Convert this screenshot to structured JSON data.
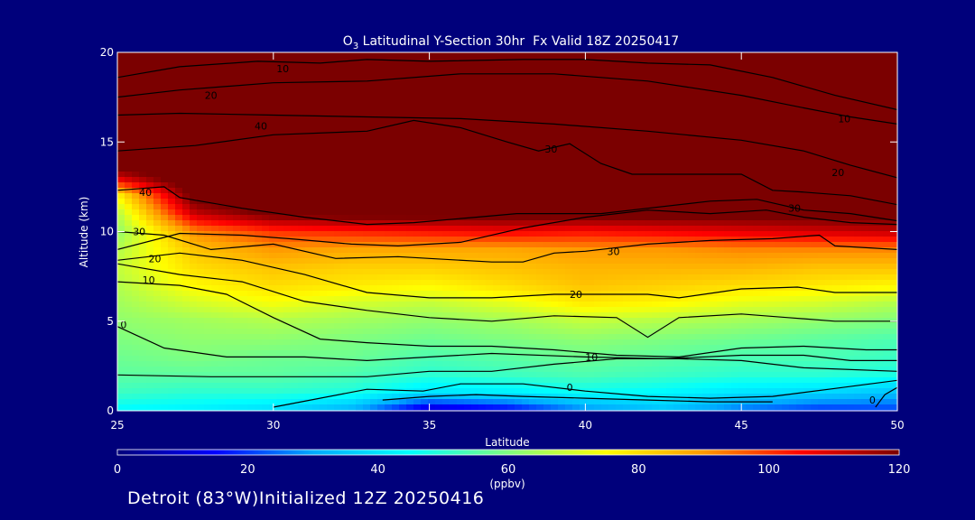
{
  "chart_data": {
    "type": "heatmap",
    "title": "O3 Latitudinal Y-Section 30hr  Fx Valid 18Z 20250417",
    "title_parts": {
      "species_base": "O",
      "species_sub": "3",
      "rest": " Latitudinal Y-Section 30hr  Fx Valid 18Z 20250417"
    },
    "xlabel": "Latitude",
    "ylabel": "Altitude (km)",
    "xlim": [
      25,
      50
    ],
    "ylim": [
      0,
      20
    ],
    "xticks": [
      25,
      30,
      35,
      40,
      45,
      50
    ],
    "yticks": [
      0,
      5,
      10,
      15,
      20
    ],
    "grid": false,
    "colorbar": {
      "label": "(ppbv)",
      "range": [
        0,
        120
      ],
      "ticks": [
        0,
        20,
        40,
        60,
        80,
        100,
        120
      ],
      "colors": [
        "#00007b",
        "#0000ff",
        "#00aaff",
        "#00ffff",
        "#7fff7f",
        "#ffff00",
        "#ff9900",
        "#ff0000",
        "#7b0000"
      ]
    },
    "field": {
      "description_units": "ppbv",
      "x": [
        25,
        27.5,
        30,
        32.5,
        35,
        37.5,
        40,
        42.5,
        45,
        47.5,
        50
      ],
      "y": [
        0,
        1,
        2,
        3,
        4,
        5,
        6,
        7,
        8,
        9,
        10,
        11,
        12,
        13,
        14,
        20
      ],
      "values": [
        [
          44,
          42,
          38,
          30,
          6,
          12,
          26,
          34,
          24,
          18,
          20
        ],
        [
          52,
          50,
          50,
          48,
          40,
          42,
          46,
          44,
          40,
          38,
          34
        ],
        [
          56,
          56,
          56,
          54,
          50,
          52,
          54,
          52,
          50,
          50,
          48
        ],
        [
          58,
          60,
          58,
          58,
          54,
          56,
          58,
          56,
          54,
          54,
          52
        ],
        [
          60,
          62,
          62,
          60,
          58,
          60,
          62,
          60,
          58,
          56,
          54
        ],
        [
          62,
          64,
          66,
          64,
          62,
          64,
          68,
          66,
          64,
          62,
          60
        ],
        [
          64,
          70,
          74,
          70,
          68,
          72,
          78,
          76,
          72,
          70,
          66
        ],
        [
          66,
          76,
          80,
          78,
          76,
          80,
          84,
          82,
          80,
          78,
          76
        ],
        [
          68,
          80,
          84,
          82,
          82,
          84,
          86,
          86,
          86,
          84,
          84
        ],
        [
          66,
          84,
          90,
          88,
          88,
          88,
          90,
          90,
          92,
          92,
          92
        ],
        [
          62,
          92,
          100,
          102,
          104,
          106,
          104,
          106,
          108,
          110,
          112
        ],
        [
          66,
          112,
          122,
          124,
          124,
          124,
          124,
          124,
          124,
          124,
          124
        ],
        [
          76,
          124,
          130,
          130,
          130,
          130,
          130,
          130,
          130,
          130,
          130
        ],
        [
          110,
          130,
          130,
          130,
          130,
          130,
          130,
          130,
          130,
          130,
          130
        ],
        [
          130,
          130,
          130,
          130,
          130,
          130,
          130,
          130,
          130,
          130,
          130
        ],
        [
          130,
          130,
          130,
          130,
          130,
          130,
          130,
          130,
          130,
          130,
          130
        ]
      ]
    },
    "contours": [
      {
        "label": "0",
        "points": [
          [
            33.5,
            0.6
          ],
          [
            35,
            0.8
          ],
          [
            36.5,
            0.9
          ],
          [
            38,
            0.8
          ],
          [
            40,
            0.7
          ],
          [
            42,
            0.6
          ],
          [
            44,
            0.5
          ],
          [
            46,
            0.5
          ]
        ]
      },
      {
        "label": "0",
        "points": [
          [
            49.3,
            0.2
          ],
          [
            49.6,
            0.9
          ],
          [
            50,
            1.3
          ]
        ]
      },
      {
        "label": "10",
        "points": [
          [
            25,
            2.0
          ],
          [
            28,
            1.9
          ],
          [
            30,
            1.9
          ],
          [
            33,
            1.9
          ],
          [
            35,
            2.2
          ],
          [
            37,
            2.2
          ],
          [
            39,
            2.6
          ],
          [
            41,
            2.9
          ],
          [
            43,
            2.9
          ],
          [
            45,
            2.8
          ],
          [
            47,
            2.4
          ],
          [
            50,
            2.2
          ]
        ]
      },
      {
        "label": "0",
        "points": [
          [
            30,
            0.2
          ],
          [
            33,
            1.2
          ],
          [
            34.8,
            1.1
          ],
          [
            36,
            1.5
          ],
          [
            38,
            1.5
          ],
          [
            40,
            1.1
          ],
          [
            42,
            0.8
          ],
          [
            44,
            0.7
          ],
          [
            46,
            0.8
          ],
          [
            47.8,
            1.2
          ],
          [
            50,
            1.7
          ]
        ]
      },
      {
        "label": "10",
        "points": [
          [
            25,
            4.7
          ],
          [
            26.5,
            3.5
          ],
          [
            28.5,
            3.0
          ],
          [
            31,
            3.0
          ],
          [
            33,
            2.8
          ],
          [
            35,
            3.0
          ],
          [
            37,
            3.2
          ],
          [
            40,
            3.0
          ],
          [
            42.5,
            2.9
          ],
          [
            45,
            3.1
          ],
          [
            47,
            3.1
          ],
          [
            48.5,
            2.8
          ],
          [
            50,
            2.8
          ]
        ]
      },
      {
        "label": "10",
        "points": [
          [
            25,
            7.2
          ],
          [
            27,
            7.0
          ],
          [
            28.5,
            6.5
          ],
          [
            30,
            5.2
          ],
          [
            31.5,
            4.0
          ],
          [
            33,
            3.8
          ],
          [
            35,
            3.6
          ],
          [
            37,
            3.6
          ],
          [
            39,
            3.4
          ],
          [
            41,
            3.1
          ],
          [
            43,
            3.0
          ],
          [
            45,
            3.5
          ],
          [
            47,
            3.6
          ],
          [
            49,
            3.4
          ],
          [
            50,
            3.4
          ]
        ]
      },
      {
        "label": "",
        "points": [
          [
            25,
            8.2
          ],
          [
            27,
            7.6
          ],
          [
            29,
            7.2
          ],
          [
            31,
            6.1
          ],
          [
            33,
            5.6
          ],
          [
            35,
            5.2
          ],
          [
            37,
            5.0
          ],
          [
            39,
            5.3
          ],
          [
            41,
            5.2
          ],
          [
            42,
            4.1
          ],
          [
            43,
            5.2
          ],
          [
            45,
            5.4
          ],
          [
            46.5,
            5.2
          ],
          [
            48,
            5.0
          ],
          [
            50,
            5.0
          ]
        ]
      },
      {
        "label": "20",
        "points": [
          [
            25,
            8.4
          ],
          [
            27,
            8.8
          ],
          [
            29,
            8.4
          ],
          [
            31,
            7.6
          ],
          [
            33,
            6.6
          ],
          [
            35,
            6.3
          ],
          [
            37,
            6.3
          ],
          [
            39,
            6.5
          ],
          [
            40,
            6.5
          ],
          [
            42,
            6.5
          ],
          [
            43,
            6.3
          ],
          [
            45,
            6.8
          ],
          [
            46.8,
            6.9
          ],
          [
            48,
            6.6
          ],
          [
            50,
            6.6
          ]
        ]
      },
      {
        "label": "30",
        "points": [
          [
            25,
            10.0
          ],
          [
            26.5,
            9.8
          ],
          [
            28,
            9.0
          ],
          [
            30,
            9.3
          ],
          [
            32,
            8.5
          ],
          [
            34,
            8.6
          ],
          [
            35,
            8.5
          ],
          [
            37,
            8.3
          ],
          [
            38,
            8.3
          ],
          [
            39,
            8.8
          ],
          [
            40,
            8.9
          ],
          [
            42,
            9.3
          ],
          [
            44,
            9.5
          ],
          [
            46,
            9.6
          ],
          [
            47.5,
            9.8
          ],
          [
            48,
            9.2
          ],
          [
            50,
            9.0
          ]
        ]
      },
      {
        "label": "30",
        "points": [
          [
            25,
            9.0
          ],
          [
            27,
            9.9
          ],
          [
            29,
            9.8
          ],
          [
            30.5,
            9.6
          ],
          [
            32.5,
            9.3
          ],
          [
            34,
            9.2
          ],
          [
            36,
            9.4
          ],
          [
            38,
            10.2
          ],
          [
            40,
            10.8
          ],
          [
            42,
            11.2
          ],
          [
            44,
            11.0
          ],
          [
            45.8,
            11.2
          ],
          [
            47,
            10.8
          ],
          [
            48.5,
            10.5
          ],
          [
            50,
            10.4
          ]
        ]
      },
      {
        "label": "40",
        "points": [
          [
            25,
            12.3
          ],
          [
            26.5,
            12.5
          ],
          [
            27,
            11.9
          ],
          [
            29,
            11.3
          ],
          [
            31,
            10.8
          ],
          [
            33,
            10.4
          ],
          [
            34.5,
            10.5
          ],
          [
            36.5,
            10.8
          ],
          [
            37.8,
            11.0
          ],
          [
            39.5,
            11.0
          ],
          [
            40.5,
            11.0
          ],
          [
            42,
            11.3
          ],
          [
            44,
            11.7
          ],
          [
            45.5,
            11.8
          ],
          [
            47,
            11.2
          ],
          [
            48.5,
            11.0
          ],
          [
            50,
            10.6
          ]
        ]
      },
      {
        "label": "30",
        "points": [
          [
            25,
            16.5
          ],
          [
            27,
            16.6
          ],
          [
            30,
            16.5
          ],
          [
            33,
            16.4
          ],
          [
            36,
            16.3
          ],
          [
            39,
            16.0
          ],
          [
            42,
            15.6
          ],
          [
            45,
            15.1
          ],
          [
            47,
            14.5
          ],
          [
            48.5,
            13.7
          ],
          [
            50,
            13.0
          ]
        ]
      },
      {
        "label": "40",
        "points": [
          [
            25,
            14.5
          ],
          [
            27.5,
            14.8
          ],
          [
            30,
            15.4
          ],
          [
            33,
            15.6
          ],
          [
            34.5,
            16.2
          ],
          [
            36,
            15.8
          ],
          [
            37.5,
            15.0
          ],
          [
            38.5,
            14.5
          ],
          [
            39.5,
            14.9
          ],
          [
            40.5,
            13.8
          ],
          [
            41.5,
            13.2
          ],
          [
            43,
            13.2
          ],
          [
            45,
            13.2
          ],
          [
            46,
            12.3
          ],
          [
            47,
            12.2
          ],
          [
            48.5,
            12.0
          ],
          [
            50,
            11.5
          ]
        ]
      },
      {
        "label": "20",
        "points": [
          [
            25,
            17.5
          ],
          [
            27,
            17.9
          ],
          [
            30,
            18.3
          ],
          [
            33,
            18.4
          ],
          [
            36,
            18.8
          ],
          [
            39,
            18.8
          ],
          [
            42,
            18.4
          ],
          [
            45,
            17.6
          ],
          [
            47,
            16.9
          ],
          [
            48.5,
            16.4
          ],
          [
            50,
            16.0
          ]
        ]
      },
      {
        "label": "10",
        "points": [
          [
            25,
            18.6
          ],
          [
            27,
            19.2
          ],
          [
            29.5,
            19.5
          ],
          [
            31.5,
            19.4
          ],
          [
            33,
            19.6
          ],
          [
            35,
            19.5
          ],
          [
            38,
            19.6
          ],
          [
            40,
            19.6
          ],
          [
            42,
            19.4
          ],
          [
            44,
            19.3
          ],
          [
            46,
            18.6
          ],
          [
            48,
            17.6
          ],
          [
            50,
            16.8
          ]
        ]
      }
    ],
    "contour_labels": [
      {
        "text": "10",
        "x": 30.3,
        "y": 19.1
      },
      {
        "text": "20",
        "x": 28.0,
        "y": 17.6
      },
      {
        "text": "40",
        "x": 29.6,
        "y": 15.9
      },
      {
        "text": "30",
        "x": 38.9,
        "y": 14.6
      },
      {
        "text": "10",
        "x": 48.3,
        "y": 16.3
      },
      {
        "text": "20",
        "x": 48.1,
        "y": 13.3
      },
      {
        "text": "30",
        "x": 46.7,
        "y": 11.3
      },
      {
        "text": "40",
        "x": 25.9,
        "y": 12.2
      },
      {
        "text": "30",
        "x": 25.7,
        "y": 10.0
      },
      {
        "text": "20",
        "x": 26.2,
        "y": 8.5
      },
      {
        "text": "10",
        "x": 26.0,
        "y": 7.3
      },
      {
        "text": "30",
        "x": 40.9,
        "y": 8.9
      },
      {
        "text": "20",
        "x": 39.7,
        "y": 6.5
      },
      {
        "text": "10",
        "x": 40.2,
        "y": 3.0
      },
      {
        "text": "0",
        "x": 39.5,
        "y": 1.3
      },
      {
        "text": "0",
        "x": 49.2,
        "y": 0.6
      },
      {
        "text": "0",
        "x": 25.2,
        "y": 4.8
      }
    ]
  },
  "footer": {
    "text": "Detroit (83°W)Initialized 12Z 20250416"
  }
}
